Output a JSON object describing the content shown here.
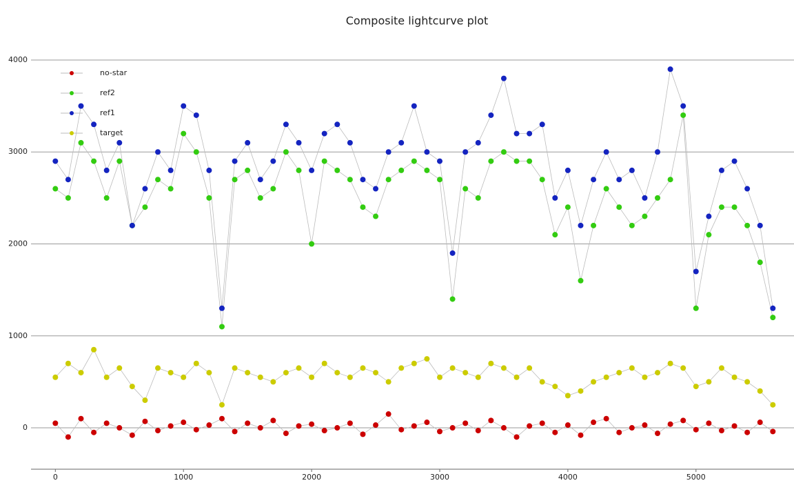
{
  "chart_data": {
    "type": "scatter",
    "title": "Composite lightcurve plot",
    "x": [
      0,
      100,
      200,
      300,
      400,
      500,
      600,
      700,
      800,
      900,
      1000,
      1100,
      1200,
      1300,
      1400,
      1500,
      1600,
      1700,
      1800,
      1900,
      2000,
      2100,
      2200,
      2300,
      2400,
      2500,
      2600,
      2700,
      2800,
      2900,
      3000,
      3100,
      3200,
      3300,
      3400,
      3500,
      3600,
      3700,
      3800,
      3900,
      4000,
      4100,
      4200,
      4300,
      4400,
      4500,
      4600,
      4700,
      4800,
      4900,
      5000,
      5100,
      5200,
      5300,
      5400,
      5500,
      5600
    ],
    "series": [
      {
        "name": "no-star",
        "color": "#cc0000",
        "values": [
          50,
          -100,
          100,
          -50,
          50,
          0,
          -80,
          70,
          -30,
          20,
          60,
          -20,
          30,
          100,
          -40,
          50,
          0,
          80,
          -60,
          20,
          40,
          -30,
          0,
          50,
          -70,
          30,
          150,
          -20,
          20,
          60,
          -40,
          0,
          50,
          -30,
          80,
          0,
          -100,
          20,
          50,
          -50,
          30,
          -80,
          60,
          100,
          -50,
          0,
          30,
          -60,
          40,
          80,
          -20,
          50,
          -30,
          20,
          -50,
          60,
          -40
        ]
      },
      {
        "name": "ref2",
        "color": "#33cc11",
        "values": [
          2600,
          2500,
          3100,
          2900,
          2500,
          2900,
          2200,
          2400,
          2700,
          2600,
          3200,
          3000,
          2500,
          1100,
          2700,
          2800,
          2500,
          2600,
          3000,
          2800,
          2000,
          2900,
          2800,
          2700,
          2400,
          2300,
          2700,
          2800,
          2900,
          2800,
          2700,
          1400,
          2600,
          2500,
          2900,
          3000,
          2900,
          2900,
          2700,
          2100,
          2400,
          1600,
          2200,
          2600,
          2400,
          2200,
          2300,
          2500,
          2700,
          3400,
          1300,
          2100,
          2400,
          2400,
          2200,
          1800,
          1200
        ]
      },
      {
        "name": "ref1",
        "color": "#1424c0",
        "values": [
          2900,
          2700,
          3500,
          3300,
          2800,
          3100,
          2200,
          2600,
          3000,
          2800,
          3500,
          3400,
          2800,
          1300,
          2900,
          3100,
          2700,
          2900,
          3300,
          3100,
          2800,
          3200,
          3300,
          3100,
          2700,
          2600,
          3000,
          3100,
          3500,
          3000,
          2900,
          1900,
          3000,
          3100,
          3400,
          3800,
          3200,
          3200,
          3300,
          2500,
          2800,
          2200,
          2700,
          3000,
          2700,
          2800,
          2500,
          3000,
          3900,
          3500,
          1700,
          2300,
          2800,
          2900,
          2600,
          2200,
          1300
        ]
      },
      {
        "name": "target",
        "color": "#cccc00",
        "values": [
          550,
          700,
          600,
          850,
          550,
          650,
          450,
          300,
          650,
          600,
          550,
          700,
          600,
          250,
          650,
          600,
          550,
          500,
          600,
          650,
          550,
          700,
          600,
          550,
          650,
          600,
          500,
          650,
          700,
          750,
          550,
          650,
          600,
          550,
          700,
          650,
          550,
          650,
          500,
          450,
          350,
          400,
          500,
          550,
          600,
          650,
          550,
          600,
          700,
          650,
          450,
          500,
          650,
          550,
          500,
          400,
          250
        ]
      }
    ],
    "xlim": [
      -190,
      5765
    ],
    "ylim": [
      -450,
      4240
    ],
    "xticks": [
      0,
      1000,
      2000,
      3000,
      4000,
      5000
    ],
    "yticks": [
      0,
      1000,
      2000,
      3000,
      4000
    ],
    "grid": true,
    "legend": "upper left"
  }
}
